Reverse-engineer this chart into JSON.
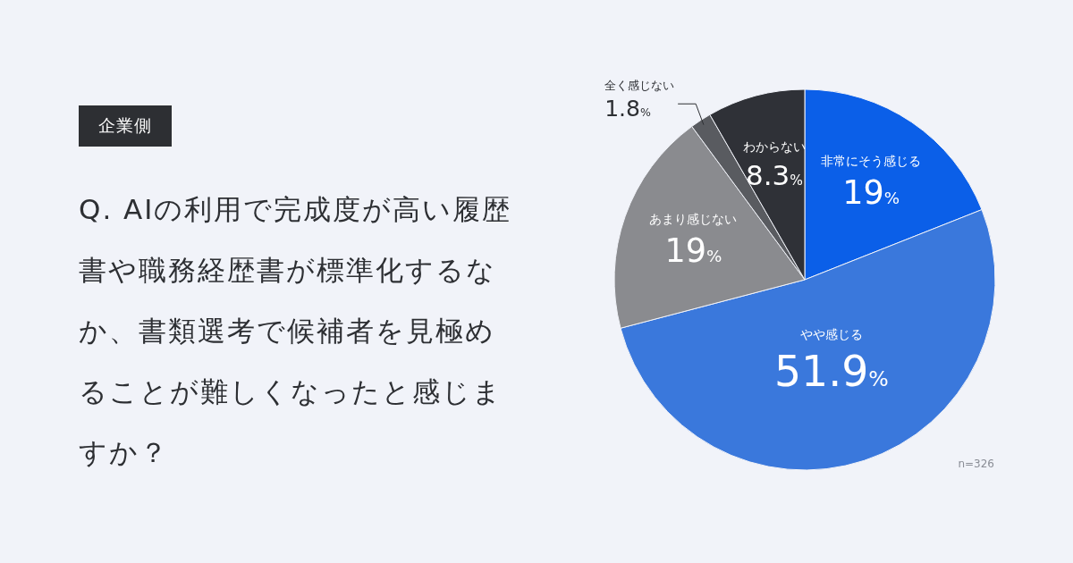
{
  "chart_data": {
    "type": "pie",
    "subtitle": "企業側",
    "title": "Q. AIの利用で完成度が高い履歴書や職務経歴書が標準化するなか、書類選考で候補者を見極めることが難しくなったと感じますか？",
    "categories": [
      "非常にそう感じる",
      "やや感じる",
      "あまり感じない",
      "全く感じない",
      "わからない"
    ],
    "values": [
      19,
      51.9,
      19,
      1.8,
      8.3
    ],
    "colors": [
      "#0b5fe8",
      "#3a78dc",
      "#8a8b8f",
      "#595b60",
      "#2f3137"
    ],
    "value_labels": [
      "19%",
      "51.9%",
      "19%",
      "1.8%",
      "8.3%"
    ],
    "annotations": [
      "n=326"
    ]
  }
}
